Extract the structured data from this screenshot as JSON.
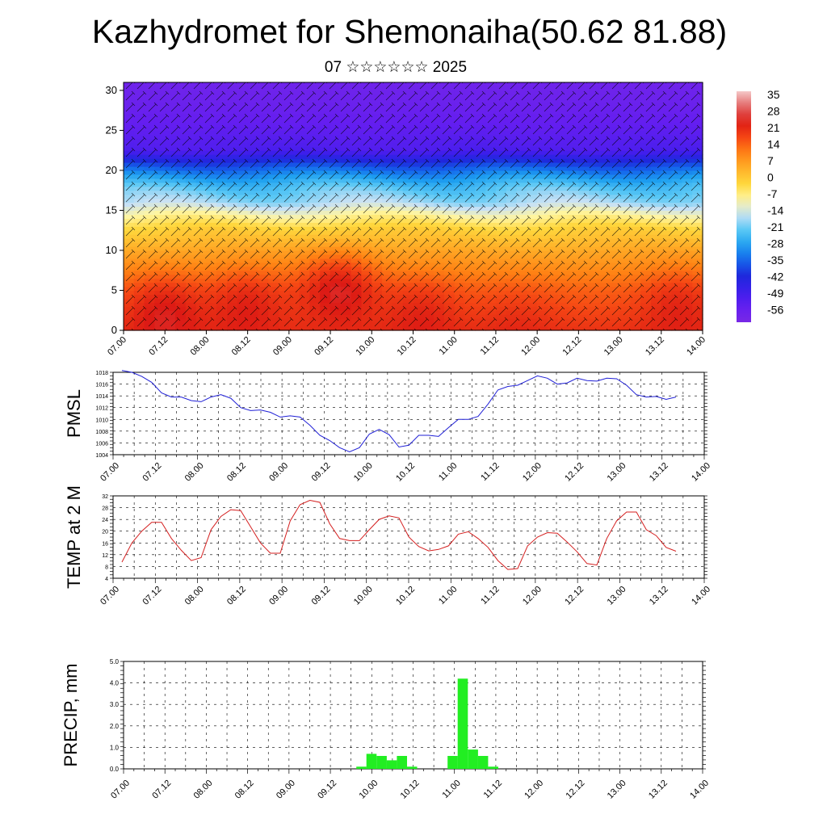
{
  "title": "Kazhydromet for Shemonaiha(50.62 81.88)",
  "subtitle": "07 ☆☆☆☆☆☆ 2025",
  "colors": {
    "pmsl_line": "#1f1fd6",
    "temp_line": "#d41f1f",
    "precip_bar": "#22ee22",
    "axis": "#000000",
    "grid": "#000000"
  },
  "chart_data": [
    {
      "type": "heatmap",
      "title": "",
      "xlabel": "",
      "ylabel": "",
      "xlim": [
        0,
        14
      ],
      "ylim": [
        0,
        31
      ],
      "x_ticks": [
        "07.00",
        "07.12",
        "08.00",
        "08.12",
        "09.00",
        "09.12",
        "10.00",
        "10.12",
        "11.00",
        "11.12",
        "12.00",
        "12.12",
        "13.00",
        "13.12",
        "14.00"
      ],
      "y_ticks": [
        "0",
        "5",
        "10",
        "15",
        "20",
        "25",
        "30"
      ],
      "colorbar": {
        "labels": [
          "35",
          "28",
          "21",
          "14",
          "7",
          "0",
          "-7",
          "-14",
          "-21",
          "-28",
          "-35",
          "-42",
          "-49",
          "-56"
        ],
        "range": [
          -63,
          42
        ]
      },
      "overlay": "wind barbs",
      "temperature_profile": {
        "levels": [
          0,
          5,
          8,
          10,
          13,
          15,
          16,
          18,
          19.5,
          21,
          22.5,
          25,
          28,
          31
        ],
        "values": [
          24,
          18,
          12,
          8,
          0,
          -10,
          -16,
          -22,
          -30,
          -40,
          -52,
          -55,
          -58,
          -60
        ]
      },
      "warm_spots": [
        {
          "x": 1.0,
          "y": 3,
          "value": 30
        },
        {
          "x": 3.0,
          "y": 4,
          "value": 28
        },
        {
          "x": 5.2,
          "y": 6,
          "value": 31
        },
        {
          "x": 7.2,
          "y": 3,
          "value": 27
        },
        {
          "x": 9.5,
          "y": 2,
          "value": 25
        },
        {
          "x": 13.4,
          "y": 4,
          "value": 27
        }
      ]
    },
    {
      "type": "line",
      "ylabel": "PMSL",
      "xlabel": "",
      "ylim": [
        1004,
        1018
      ],
      "y_ticks": [
        1004,
        1006,
        1008,
        1010,
        1012,
        1014,
        1016,
        1018
      ],
      "x_ticks": [
        "07.00",
        "07.12",
        "08.00",
        "08.12",
        "09.00",
        "09.12",
        "10.00",
        "10.12",
        "11.00",
        "11.12",
        "12.00",
        "12.12",
        "13.00",
        "13.12",
        "14.00"
      ],
      "grid": true,
      "series": [
        {
          "x": [
            0,
            0.25,
            0.5,
            0.75,
            1,
            1.25,
            1.5,
            1.75,
            2,
            2.25,
            2.5,
            2.75,
            3,
            3.25,
            3.5,
            3.75,
            4,
            4.25,
            4.5,
            4.75,
            5,
            5.25,
            5.5,
            5.75,
            6,
            6.25,
            6.5,
            6.75,
            7,
            7.25,
            7.5,
            7.75,
            8,
            8.25,
            8.5,
            8.75,
            9,
            9.25,
            9.5,
            9.75,
            10,
            10.25,
            10.5,
            10.75,
            11,
            11.25,
            11.5,
            11.75,
            12,
            12.25,
            12.5,
            12.75,
            13,
            13.25,
            13.5,
            13.75,
            14
          ],
          "values": [
            1018.3,
            1018.0,
            1017.3,
            1016.3,
            1014.5,
            1013.8,
            1013.8,
            1013.2,
            1013.0,
            1013.8,
            1014.2,
            1013.6,
            1012.0,
            1011.5,
            1011.6,
            1011.2,
            1010.4,
            1010.6,
            1010.4,
            1009.0,
            1007.3,
            1006.4,
            1005.2,
            1004.5,
            1005.2,
            1007.5,
            1008.3,
            1007.4,
            1005.3,
            1005.6,
            1007.3,
            1007.3,
            1007.1,
            1008.6,
            1010.0,
            1010.0,
            1010.5,
            1012.6,
            1015.0,
            1015.6,
            1015.8,
            1016.6,
            1017.4,
            1017.0,
            1016.0,
            1016.2,
            1017.0,
            1016.6,
            1016.5,
            1017.0,
            1016.9,
            1015.8,
            1014.2,
            1013.8,
            1013.9,
            1013.4,
            1013.8
          ]
        }
      ]
    },
    {
      "type": "line",
      "ylabel": "TEMP at 2 M",
      "xlabel": "",
      "ylim": [
        4,
        32
      ],
      "y_ticks": [
        4,
        8,
        12,
        16,
        20,
        24,
        28,
        32
      ],
      "x_ticks": [
        "07.00",
        "07.12",
        "08.00",
        "08.12",
        "09.00",
        "09.12",
        "10.00",
        "10.12",
        "11.00",
        "11.12",
        "12.00",
        "12.12",
        "13.00",
        "13.12",
        "14.00"
      ],
      "grid": true,
      "series": [
        {
          "x": [
            0,
            0.25,
            0.5,
            0.75,
            1,
            1.25,
            1.5,
            1.75,
            2,
            2.25,
            2.5,
            2.75,
            3,
            3.25,
            3.5,
            3.75,
            4,
            4.25,
            4.5,
            4.75,
            5,
            5.25,
            5.5,
            5.75,
            6,
            6.25,
            6.5,
            6.75,
            7,
            7.25,
            7.5,
            7.75,
            8,
            8.25,
            8.5,
            8.75,
            9,
            9.25,
            9.5,
            9.75,
            10,
            10.25,
            10.5,
            10.75,
            11,
            11.25,
            11.5,
            11.75,
            12,
            12.25,
            12.5,
            12.75,
            13,
            13.25,
            13.5,
            13.75,
            14
          ],
          "values": [
            9.5,
            16.0,
            20.0,
            23.0,
            23.0,
            17.5,
            13.5,
            10.0,
            11.0,
            20.5,
            25.0,
            27.3,
            27.0,
            21.5,
            16.0,
            12.5,
            12.5,
            23.5,
            29.0,
            30.5,
            29.8,
            22.5,
            17.5,
            16.8,
            16.8,
            20.5,
            24.0,
            25.2,
            24.5,
            18.0,
            14.8,
            13.3,
            13.8,
            15.0,
            19.0,
            19.8,
            17.5,
            14.5,
            10.0,
            7.0,
            7.3,
            15.0,
            18.0,
            19.5,
            19.3,
            16.3,
            13.0,
            9.0,
            8.5,
            17.5,
            23.5,
            26.5,
            26.5,
            20.5,
            18.5,
            14.5,
            13.2
          ]
        }
      ]
    },
    {
      "type": "bar",
      "ylabel": "PRECIP, mm",
      "xlabel": "",
      "ylim": [
        0,
        5
      ],
      "y_ticks": [
        "0.0",
        "1.0",
        "2.0",
        "3.0",
        "4.0",
        "5.0"
      ],
      "x_ticks": [
        "07.00",
        "07.12",
        "08.00",
        "08.12",
        "09.00",
        "09.12",
        "10.00",
        "10.12",
        "11.00",
        "11.12",
        "12.00",
        "12.12",
        "13.00",
        "13.12",
        "14.00"
      ],
      "grid": true,
      "x": [
        5.625,
        5.875,
        6.125,
        6.375,
        6.625,
        6.875,
        7.125,
        7.375,
        7.625,
        7.875,
        8.125,
        8.375,
        8.625,
        8.875,
        9.125
      ],
      "values": [
        0.1,
        0.7,
        0.6,
        0.4,
        0.6,
        0.1,
        0.0,
        0.0,
        0.0,
        0.6,
        4.2,
        0.9,
        0.6,
        0.1,
        0.0
      ]
    }
  ]
}
